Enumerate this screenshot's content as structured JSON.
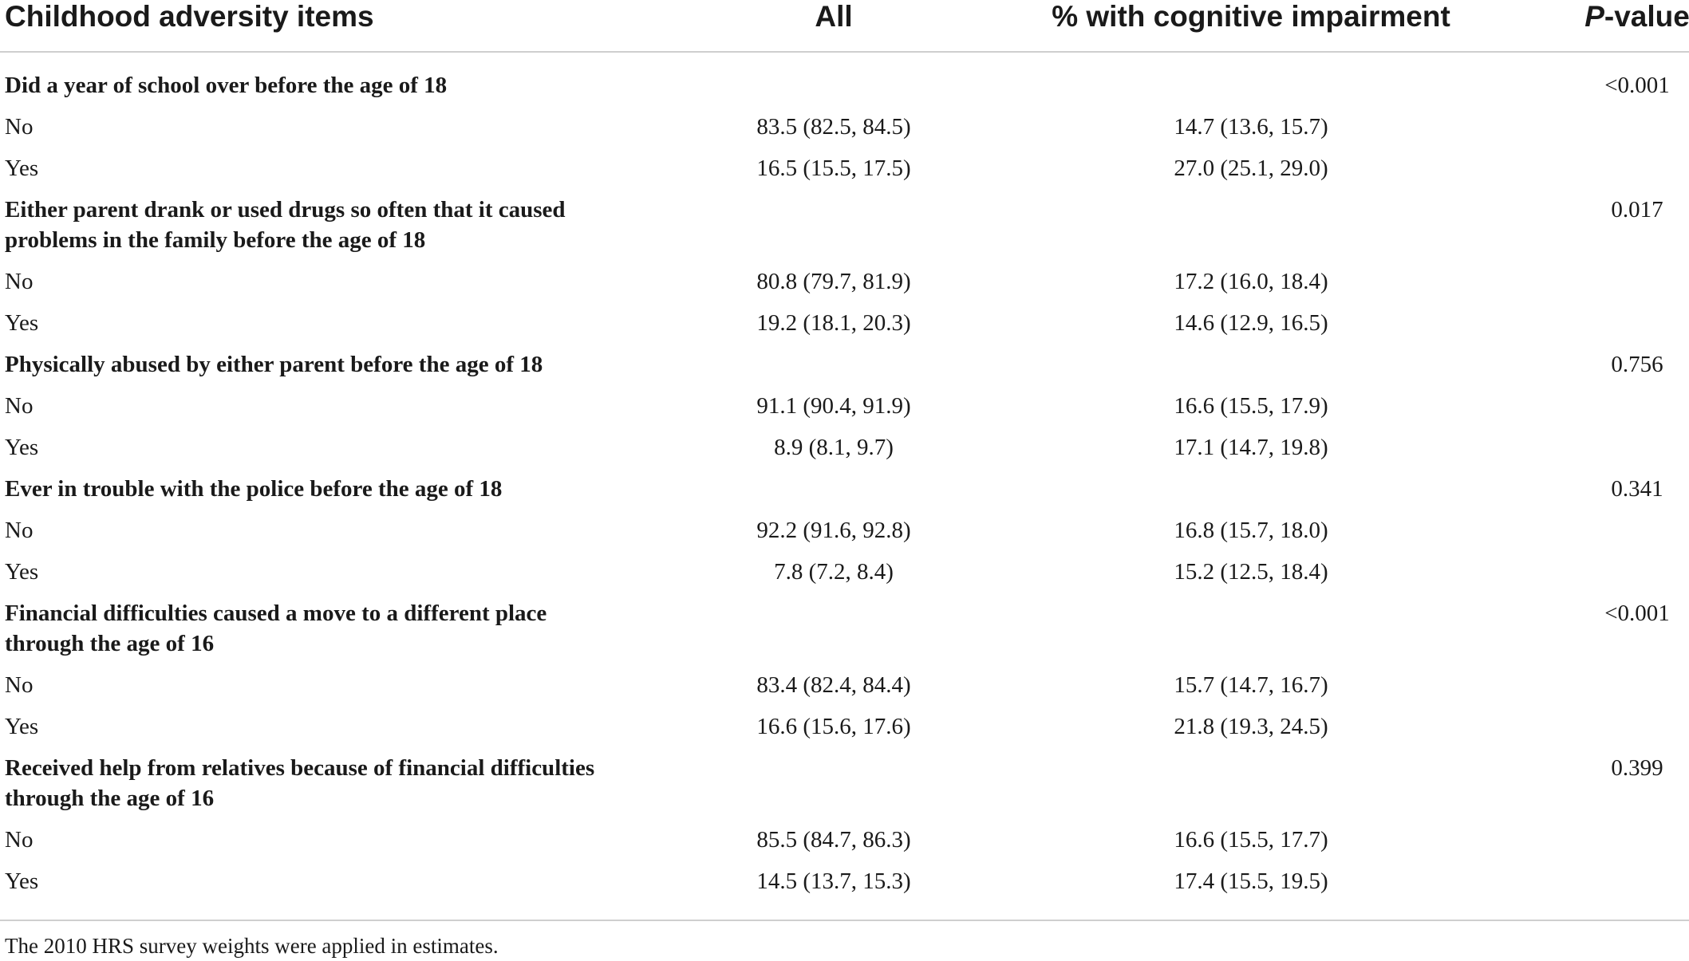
{
  "table": {
    "headers": {
      "item": "Childhood adversity items",
      "all": "All",
      "cognitive": "% with cognitive impairment",
      "p_italic": "P",
      "p_rest": "-value"
    },
    "categories": [
      {
        "label": "Did a year of school over before the age of 18",
        "p_value": "<0.001",
        "rows": [
          {
            "level": "No",
            "all": "83.5 (82.5, 84.5)",
            "cognitive": "14.7 (13.6, 15.7)"
          },
          {
            "level": "Yes",
            "all": "16.5 (15.5, 17.5)",
            "cognitive": "27.0 (25.1, 29.0)"
          }
        ]
      },
      {
        "label": "Either parent drank or used drugs so often that it caused problems in the family before the age of 18",
        "p_value": "0.017",
        "rows": [
          {
            "level": "No",
            "all": "80.8 (79.7, 81.9)",
            "cognitive": "17.2 (16.0, 18.4)"
          },
          {
            "level": "Yes",
            "all": "19.2 (18.1, 20.3)",
            "cognitive": "14.6 (12.9, 16.5)"
          }
        ]
      },
      {
        "label": "Physically abused by either parent before the age of 18",
        "p_value": "0.756",
        "rows": [
          {
            "level": "No",
            "all": "91.1 (90.4, 91.9)",
            "cognitive": "16.6 (15.5, 17.9)"
          },
          {
            "level": "Yes",
            "all": "8.9 (8.1, 9.7)",
            "cognitive": "17.1 (14.7, 19.8)"
          }
        ]
      },
      {
        "label": "Ever in trouble with the police before the age of 18",
        "p_value": "0.341",
        "rows": [
          {
            "level": "No",
            "all": "92.2 (91.6, 92.8)",
            "cognitive": "16.8 (15.7, 18.0)"
          },
          {
            "level": "Yes",
            "all": "7.8 (7.2, 8.4)",
            "cognitive": "15.2 (12.5, 18.4)"
          }
        ]
      },
      {
        "label": "Financial difficulties caused a move to a different place through the age of 16",
        "p_value": "<0.001",
        "rows": [
          {
            "level": "No",
            "all": "83.4 (82.4, 84.4)",
            "cognitive": "15.7 (14.7, 16.7)"
          },
          {
            "level": "Yes",
            "all": "16.6 (15.6, 17.6)",
            "cognitive": "21.8 (19.3, 24.5)"
          }
        ]
      },
      {
        "label": "Received help from relatives because of financial difficulties through the age of 16",
        "p_value": "0.399",
        "rows": [
          {
            "level": "No",
            "all": "85.5 (84.7, 86.3)",
            "cognitive": "16.6 (15.5, 17.7)"
          },
          {
            "level": "Yes",
            "all": "14.5 (13.7, 15.3)",
            "cognitive": "17.4 (15.5, 19.5)"
          }
        ]
      }
    ],
    "footnote": "The 2010 HRS survey weights were applied in estimates."
  }
}
